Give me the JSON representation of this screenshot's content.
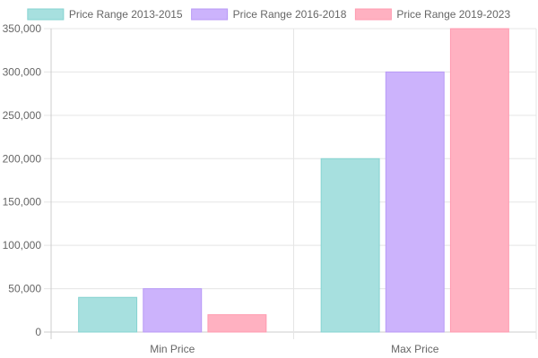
{
  "chart_data": {
    "type": "bar",
    "title": "",
    "xlabel": "",
    "ylabel": "",
    "categories": [
      "Min Price",
      "Max Price"
    ],
    "series": [
      {
        "name": "Price Range 2013-2015",
        "values": [
          40000,
          200000
        ],
        "fill": "#a7e0df",
        "stroke": "#86d3d1"
      },
      {
        "name": "Price Range 2016-2018",
        "values": [
          50000,
          300000
        ],
        "fill": "#ccb3fc",
        "stroke": "#b89af6"
      },
      {
        "name": "Price Range 2019-2023",
        "values": [
          20000,
          350000
        ],
        "fill": "#ffb1c1",
        "stroke": "#ff9bb0"
      }
    ],
    "ylim": [
      0,
      350000
    ],
    "y_ticks": [
      "0",
      "50,000",
      "100,000",
      "150,000",
      "200,000",
      "250,000",
      "300,000",
      "350,000"
    ],
    "legend_position": "top",
    "grid": true
  }
}
